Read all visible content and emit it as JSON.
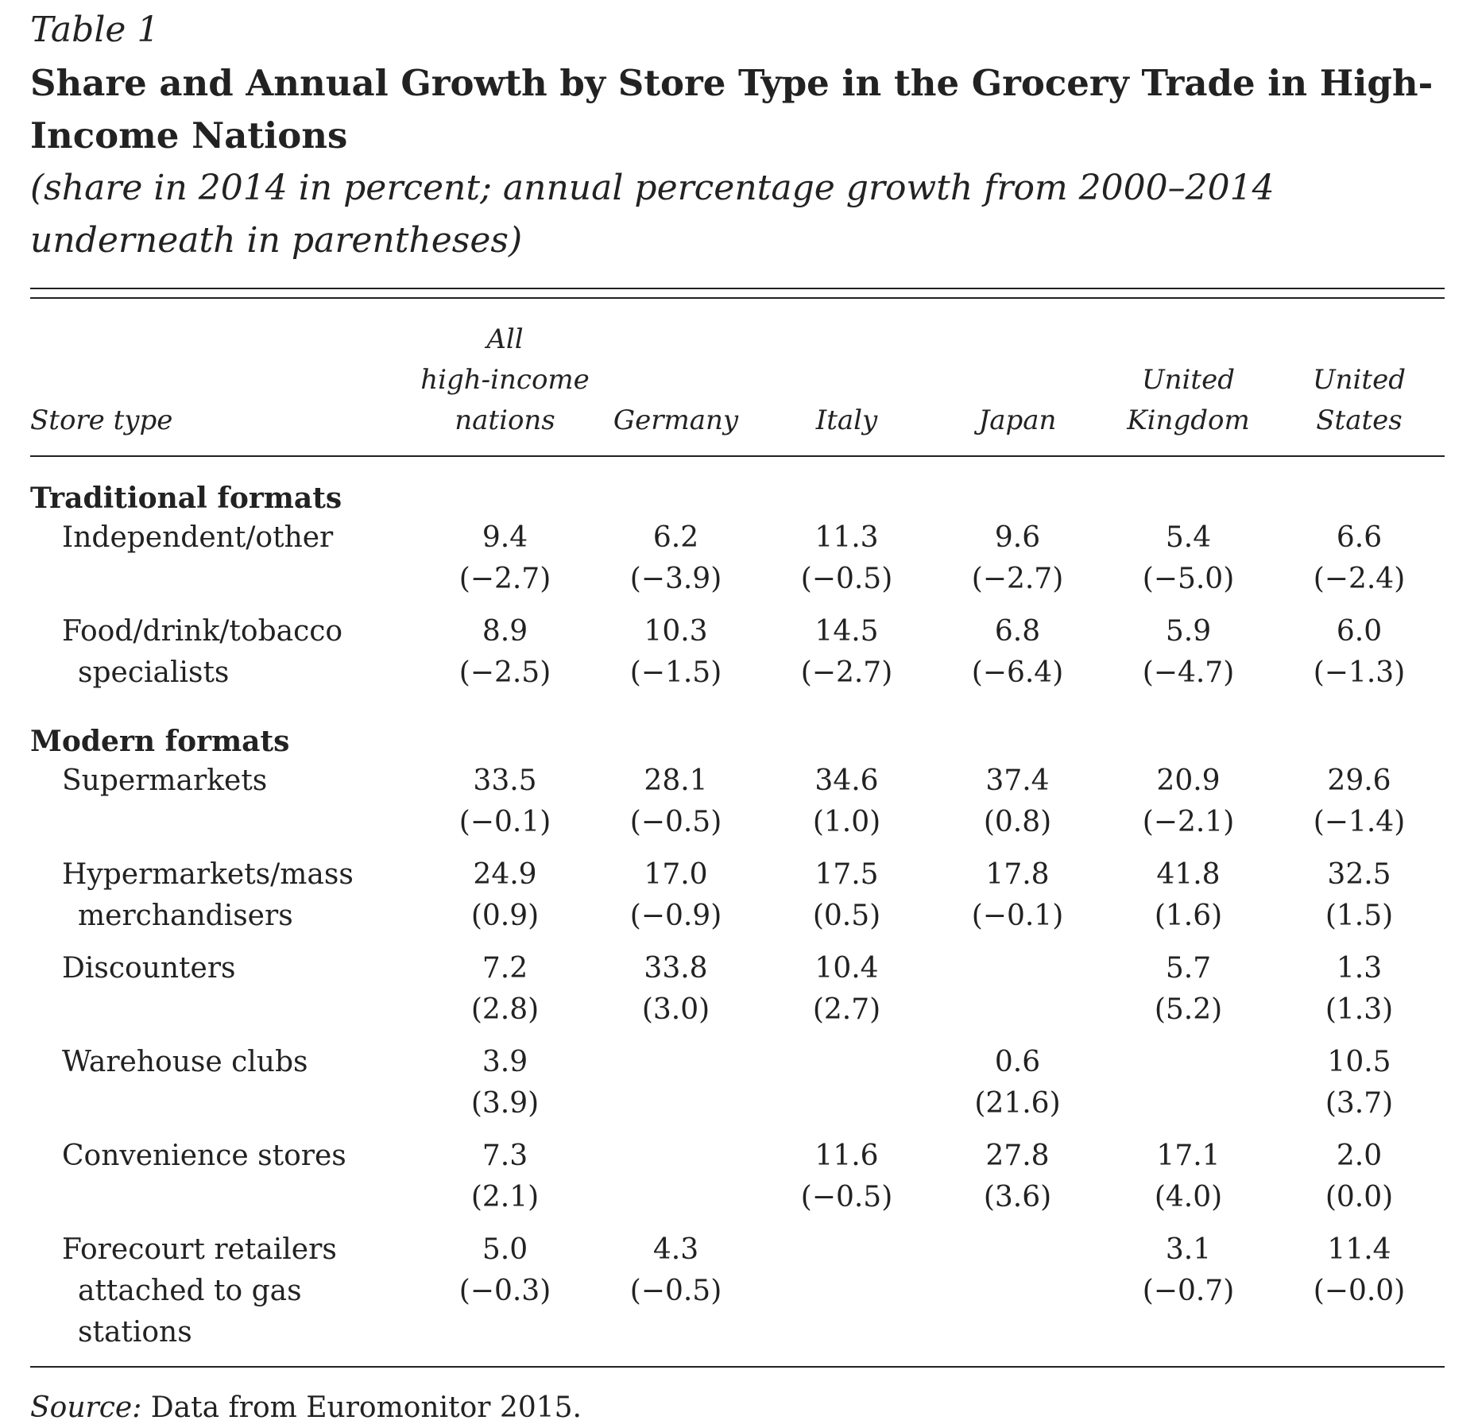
{
  "table_label": "Table 1",
  "title": "Share and Annual Growth by Store Type in the Grocery Trade in High-Income Nations",
  "subtitle": "(share in 2014 in percent; annual percentage growth from 2000–2014 underneath in parentheses)",
  "columns": {
    "store_type": "Store type",
    "all": [
      "All",
      "high-income",
      "nations"
    ],
    "germany": "Germany",
    "italy": "Italy",
    "japan": "Japan",
    "uk": [
      "United",
      "Kingdom"
    ],
    "us": [
      "United",
      "States"
    ]
  },
  "sections": [
    {
      "name": "Traditional formats",
      "rows": [
        {
          "label": [
            "Independent/other"
          ],
          "cells": [
            [
              "9.4",
              "(−2.7)"
            ],
            [
              "6.2",
              "(−3.9)"
            ],
            [
              "11.3",
              "(−0.5)"
            ],
            [
              "9.6",
              "(−2.7)"
            ],
            [
              "5.4",
              "(−5.0)"
            ],
            [
              "6.6",
              "(−2.4)"
            ]
          ]
        },
        {
          "label": [
            "Food/drink/tobacco",
            "specialists"
          ],
          "cells": [
            [
              "8.9",
              "(−2.5)"
            ],
            [
              "10.3",
              "(−1.5)"
            ],
            [
              "14.5",
              "(−2.7)"
            ],
            [
              "6.8",
              "(−6.4)"
            ],
            [
              "5.9",
              "(−4.7)"
            ],
            [
              "6.0",
              "(−1.3)"
            ]
          ]
        }
      ]
    },
    {
      "name": "Modern formats",
      "rows": [
        {
          "label": [
            "Supermarkets"
          ],
          "cells": [
            [
              "33.5",
              "(−0.1)"
            ],
            [
              "28.1",
              "(−0.5)"
            ],
            [
              "34.6",
              "(1.0)"
            ],
            [
              "37.4",
              "(0.8)"
            ],
            [
              "20.9",
              "(−2.1)"
            ],
            [
              "29.6",
              "(−1.4)"
            ]
          ]
        },
        {
          "label": [
            "Hypermarkets/mass",
            "merchandisers"
          ],
          "cells": [
            [
              "24.9",
              "(0.9)"
            ],
            [
              "17.0",
              "(−0.9)"
            ],
            [
              "17.5",
              "(0.5)"
            ],
            [
              "17.8",
              "(−0.1)"
            ],
            [
              "41.8",
              "(1.6)"
            ],
            [
              "32.5",
              "(1.5)"
            ]
          ]
        },
        {
          "label": [
            "Discounters"
          ],
          "cells": [
            [
              "7.2",
              "(2.8)"
            ],
            [
              "33.8",
              "(3.0)"
            ],
            [
              "10.4",
              "(2.7)"
            ],
            [
              "",
              ""
            ],
            [
              "5.7",
              "(5.2)"
            ],
            [
              "1.3",
              "(1.3)"
            ]
          ]
        },
        {
          "label": [
            "Warehouse clubs"
          ],
          "cells": [
            [
              "3.9",
              "(3.9)"
            ],
            [
              "",
              ""
            ],
            [
              "",
              ""
            ],
            [
              "0.6",
              "(21.6)"
            ],
            [
              "",
              ""
            ],
            [
              "10.5",
              "(3.7)"
            ]
          ]
        },
        {
          "label": [
            "Convenience stores"
          ],
          "cells": [
            [
              "7.3",
              "(2.1)"
            ],
            [
              "",
              ""
            ],
            [
              "11.6",
              "(−0.5)"
            ],
            [
              "27.8",
              "(3.6)"
            ],
            [
              "17.1",
              "(4.0)"
            ],
            [
              "2.0",
              "(0.0)"
            ]
          ]
        },
        {
          "label": [
            "Forecourt retailers",
            "attached to gas stations"
          ],
          "cells": [
            [
              "5.0",
              "(−0.3)"
            ],
            [
              "4.3",
              "(−0.5)"
            ],
            [
              "",
              ""
            ],
            [
              "",
              ""
            ],
            [
              "3.1",
              "(−0.7)"
            ],
            [
              "11.4",
              "(−0.0)"
            ]
          ]
        }
      ]
    }
  ],
  "source": {
    "label": "Source:",
    "text": " Data from Euromonitor 2015."
  }
}
